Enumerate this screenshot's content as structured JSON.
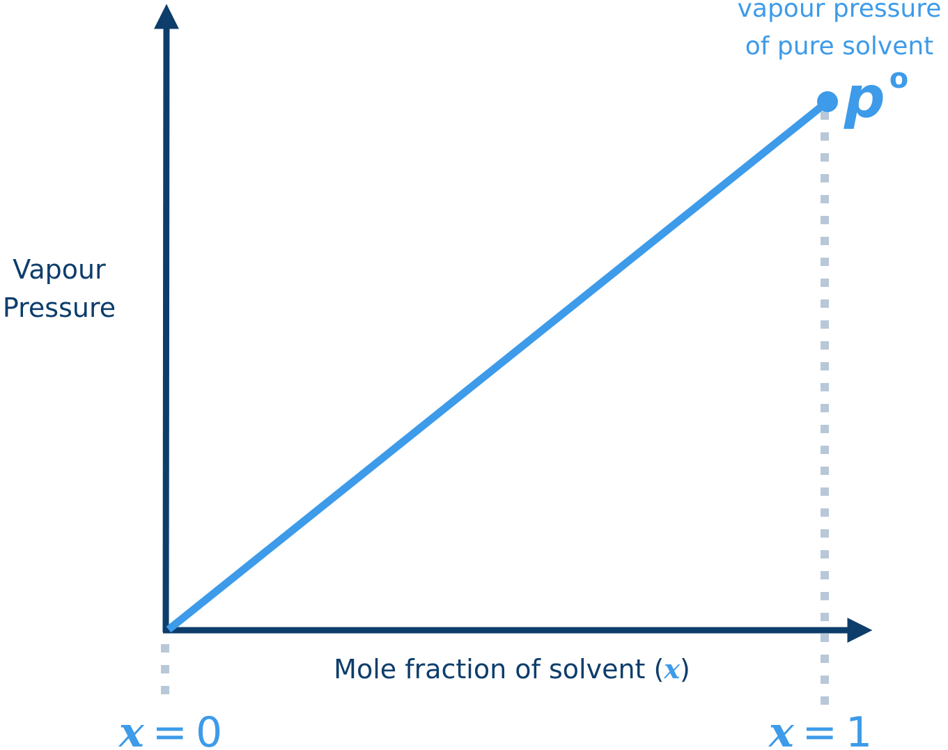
{
  "y_axis_label": [
    "Vapour",
    "Pressure"
  ],
  "x_axis_label": {
    "text": "Mole fraction of solvent (",
    "variable": "x",
    "close": ")"
  },
  "callout": [
    "vapour pressure",
    "of pure solvent"
  ],
  "point_label": {
    "symbol": "p",
    "superscript": "o"
  },
  "x_markers": [
    {
      "variable": "x",
      "equals": "=",
      "value": "0"
    },
    {
      "variable": "x",
      "equals": "=",
      "value": "1"
    }
  ]
}
